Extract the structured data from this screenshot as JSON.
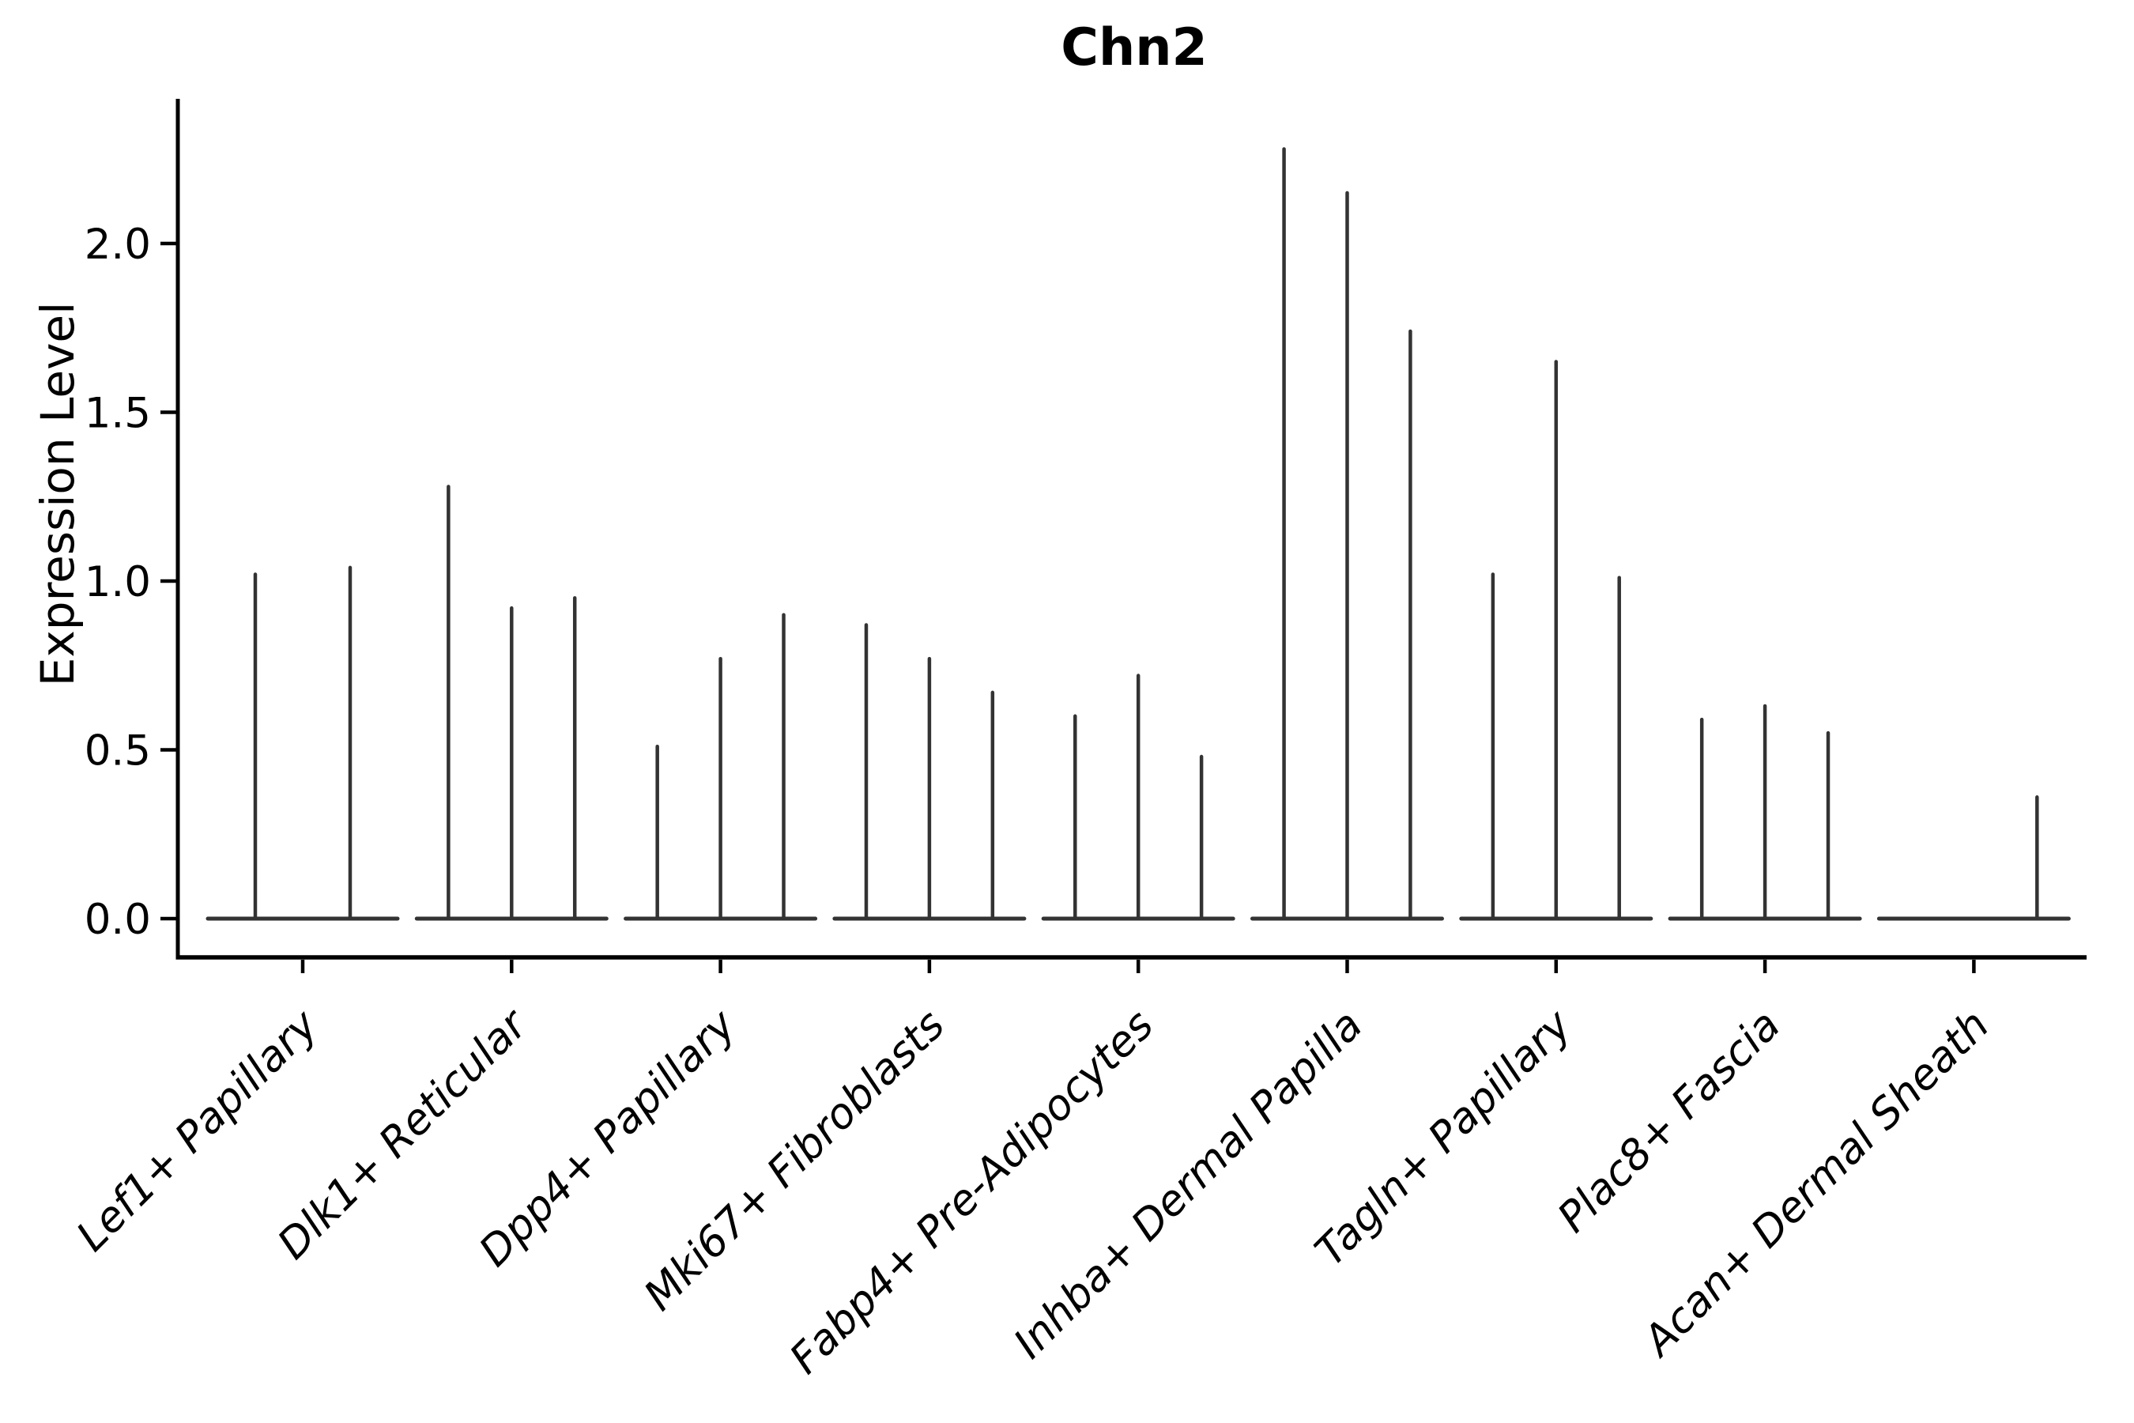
{
  "chart_data": {
    "type": "violin",
    "title": "Chn2",
    "xlabel": "",
    "ylabel": "Expression Level",
    "ytick_values": [
      0.0,
      0.5,
      1.0,
      1.5,
      2.0
    ],
    "ytick_labels": [
      "0.0",
      "0.5",
      "1.0",
      "1.5",
      "2.0"
    ],
    "ylim": [
      -0.12,
      2.43
    ],
    "grid": false,
    "legend_position": "none",
    "categories": [
      "Lef1+ Papillary",
      "Dlk1+ Reticular",
      "Dpp4+ Papillary",
      "Mki67+ Fibroblasts",
      "Fabp4+ Pre-Adipocytes",
      "Inhba+ Dermal Papilla",
      "Tagln+ Papillary",
      "Plac8+ Fascia",
      "Acan+ Dermal Sheath"
    ],
    "groups": [
      {
        "category": "Lef1+ Papillary",
        "violins": [
          {
            "pos": 0.25,
            "max": 1.02
          },
          {
            "pos": 0.75,
            "max": 1.04
          }
        ]
      },
      {
        "category": "Dlk1+ Reticular",
        "violins": [
          {
            "pos": 0.167,
            "max": 1.28
          },
          {
            "pos": 0.5,
            "max": 0.92
          },
          {
            "pos": 0.833,
            "max": 0.95
          }
        ]
      },
      {
        "category": "Dpp4+ Papillary",
        "violins": [
          {
            "pos": 0.167,
            "max": 0.51
          },
          {
            "pos": 0.5,
            "max": 0.77
          },
          {
            "pos": 0.833,
            "max": 0.9
          }
        ]
      },
      {
        "category": "Mki67+ Fibroblasts",
        "violins": [
          {
            "pos": 0.167,
            "max": 0.87
          },
          {
            "pos": 0.5,
            "max": 0.77
          },
          {
            "pos": 0.833,
            "max": 0.67
          }
        ]
      },
      {
        "category": "Fabp4+ Pre-Adipocytes",
        "violins": [
          {
            "pos": 0.167,
            "max": 0.6
          },
          {
            "pos": 0.5,
            "max": 0.72
          },
          {
            "pos": 0.833,
            "max": 0.48
          }
        ]
      },
      {
        "category": "Inhba+ Dermal Papilla",
        "violins": [
          {
            "pos": 0.167,
            "max": 2.28
          },
          {
            "pos": 0.5,
            "max": 2.15
          },
          {
            "pos": 0.833,
            "max": 1.74
          }
        ]
      },
      {
        "category": "Tagln+ Papillary",
        "violins": [
          {
            "pos": 0.167,
            "max": 1.02
          },
          {
            "pos": 0.5,
            "max": 1.65
          },
          {
            "pos": 0.833,
            "max": 1.01
          }
        ]
      },
      {
        "category": "Plac8+ Fascia",
        "violins": [
          {
            "pos": 0.167,
            "max": 0.59
          },
          {
            "pos": 0.5,
            "max": 0.63
          },
          {
            "pos": 0.833,
            "max": 0.55
          }
        ]
      },
      {
        "category": "Acan+ Dermal Sheath",
        "violins": [
          {
            "pos": 0.833,
            "max": 0.36
          }
        ]
      }
    ],
    "colors": {
      "violin_line": "#333333",
      "axis": "#000000",
      "text": "#000000",
      "background": "#ffffff"
    }
  }
}
